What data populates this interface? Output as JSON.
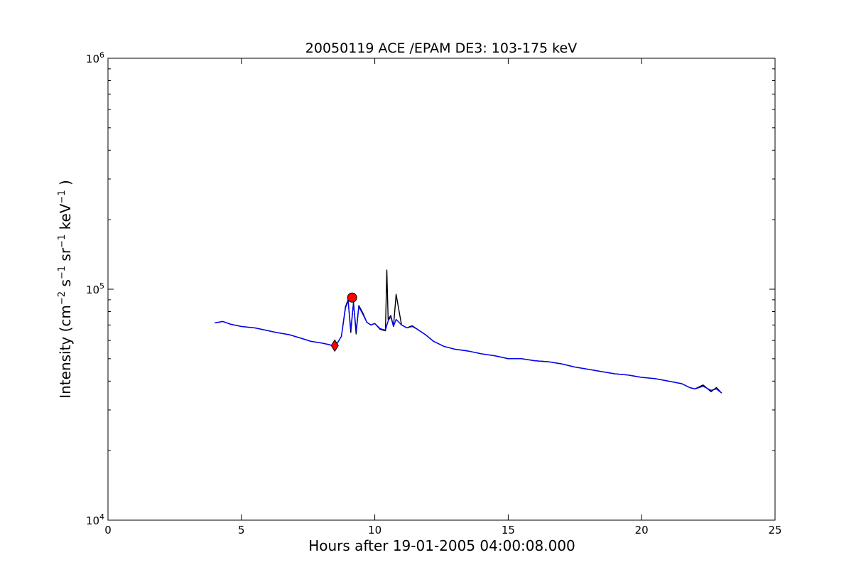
{
  "chart_data": {
    "type": "line",
    "title": "20050119 ACE /EPAM DE3: 103-175 keV",
    "xlabel": "Hours after 19-01-2005 04:00:08.000",
    "ylabel": {
      "prefix": "Intensity (cm",
      "cm_exp": "−2",
      "s": " s",
      "s_exp": "−1",
      "sr": " sr",
      "sr_exp": "−1",
      "kev": " keV",
      "kev_exp": "−1",
      "suffix": " )"
    },
    "xlim": [
      0,
      25
    ],
    "ylim": [
      10000,
      1000000
    ],
    "yscale": "log",
    "x_ticks": [
      "0",
      "5",
      "10",
      "15",
      "20",
      "25"
    ],
    "y_ticks": [
      {
        "base": "10",
        "exp": "4",
        "value": 10000
      },
      {
        "base": "10",
        "exp": "5",
        "value": 100000
      },
      {
        "base": "10",
        "exp": "6",
        "value": 1000000
      }
    ],
    "grid": false,
    "series": [
      {
        "color": "#000000",
        "x": [
          4.0,
          4.3,
          4.6,
          5.0,
          5.5,
          5.9,
          6.3,
          6.8,
          7.2,
          7.6,
          8.0,
          8.3,
          8.5,
          8.6,
          8.75,
          8.9,
          9.0,
          9.1,
          9.2,
          9.3,
          9.4,
          9.55,
          9.7,
          9.85,
          10.0,
          10.2,
          10.4,
          10.45,
          10.5,
          10.6,
          10.7,
          10.8,
          11.0,
          11.2,
          11.4,
          11.6,
          11.9,
          12.2,
          12.6,
          13.0,
          13.5,
          14.0,
          14.5,
          15.0,
          15.5,
          16.0,
          16.5,
          17.0,
          17.5,
          18.0,
          18.5,
          19.0,
          19.5,
          20.0,
          20.5,
          21.0,
          21.5,
          21.8,
          22.0,
          22.3,
          22.6,
          22.8,
          23.0
        ],
        "y": [
          71500,
          72500,
          70500,
          69000,
          68000,
          66500,
          65000,
          63500,
          61500,
          59500,
          58500,
          57500,
          56500,
          58500,
          62500,
          84000,
          90000,
          65000,
          88000,
          64000,
          85000,
          79000,
          72000,
          70000,
          71000,
          67000,
          66000,
          121000,
          74000,
          77000,
          69000,
          95000,
          70000,
          68000,
          69500,
          67000,
          63500,
          59500,
          56500,
          55000,
          54000,
          52500,
          51500,
          50000,
          50000,
          49000,
          48500,
          47500,
          46000,
          45000,
          44000,
          43000,
          42500,
          41500,
          41000,
          40000,
          39000,
          37500,
          37000,
          38500,
          36000,
          37500,
          35500
        ]
      },
      {
        "color": "#0000ff",
        "x": [
          4.0,
          4.3,
          4.6,
          5.0,
          5.5,
          5.9,
          6.3,
          6.8,
          7.2,
          7.6,
          8.0,
          8.3,
          8.5,
          8.6,
          8.75,
          8.9,
          9.0,
          9.1,
          9.2,
          9.3,
          9.4,
          9.55,
          9.7,
          9.85,
          10.0,
          10.2,
          10.4,
          10.5,
          10.6,
          10.7,
          10.8,
          11.0,
          11.2,
          11.4,
          11.6,
          11.9,
          12.2,
          12.6,
          13.0,
          13.5,
          14.0,
          14.5,
          15.0,
          15.5,
          16.0,
          16.5,
          17.0,
          17.5,
          18.0,
          18.5,
          19.0,
          19.5,
          20.0,
          20.5,
          21.0,
          21.5,
          21.8,
          22.0,
          22.3,
          22.6,
          22.8,
          23.0
        ],
        "y": [
          71500,
          72500,
          70500,
          69000,
          68000,
          66500,
          65000,
          63500,
          61500,
          59500,
          58500,
          57500,
          56500,
          58500,
          62500,
          83000,
          89000,
          67000,
          87000,
          66000,
          84000,
          78000,
          72000,
          70000,
          71000,
          67500,
          66500,
          73000,
          76000,
          69000,
          74000,
          70000,
          68000,
          69000,
          67000,
          63500,
          59500,
          56500,
          55000,
          54000,
          52500,
          51500,
          50000,
          50000,
          49000,
          48500,
          47500,
          46000,
          45000,
          44000,
          43000,
          42500,
          41500,
          41000,
          40000,
          39000,
          37500,
          37000,
          38000,
          36500,
          37000,
          35500
        ]
      }
    ],
    "markers": [
      {
        "shape": "diamond",
        "color": "#ff0000",
        "x": 8.5,
        "y": 57000
      },
      {
        "shape": "circle",
        "color": "#ff0000",
        "x": 9.15,
        "y": 92000
      }
    ]
  }
}
